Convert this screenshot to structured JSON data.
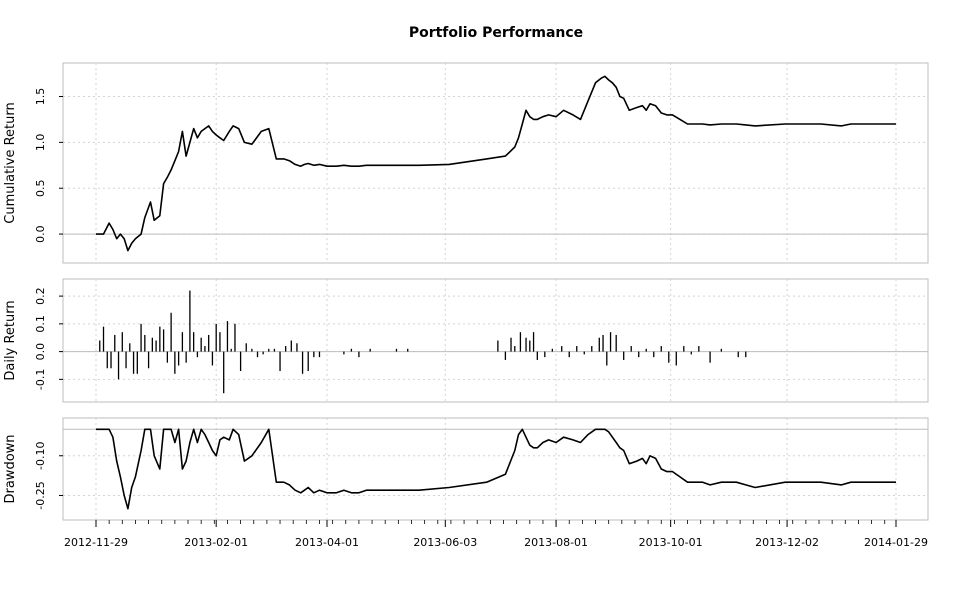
{
  "chart_data": {
    "type": "line",
    "title": "Portfolio Performance",
    "x_tick_labels": [
      "2012-11-29",
      "2013-02-01",
      "2013-04-01",
      "2013-06-03",
      "2013-08-01",
      "2013-10-01",
      "2013-12-02",
      "2014-01-29"
    ],
    "x_range": [
      "2012-11-29",
      "2014-01-29"
    ],
    "grid": true,
    "colors": {
      "line": "#000000",
      "grid": "#d3d3d3",
      "frame": "#bebebe",
      "zero": "#bebebe"
    },
    "panels": [
      {
        "name": "cumulative",
        "type": "line",
        "ylabel": "Cumulative Return",
        "ylim": [
          -0.25,
          1.8
        ],
        "yticks": [
          0.0,
          0.5,
          1.0,
          1.5
        ],
        "ytick_labels": [
          "0.0",
          "0.5",
          "1.0",
          "1.5"
        ],
        "x": [
          "2012-11-29",
          "2012-12-03",
          "2012-12-06",
          "2012-12-08",
          "2012-12-10",
          "2012-12-12",
          "2012-12-14",
          "2012-12-16",
          "2012-12-18",
          "2012-12-20",
          "2012-12-23",
          "2012-12-25",
          "2012-12-28",
          "2012-12-30",
          "2013-01-02",
          "2013-01-04",
          "2013-01-06",
          "2013-01-08",
          "2013-01-10",
          "2013-01-12",
          "2013-01-14",
          "2013-01-16",
          "2013-01-18",
          "2013-01-20",
          "2013-01-22",
          "2013-01-24",
          "2013-01-26",
          "2013-01-28",
          "2013-01-30",
          "2013-02-01",
          "2013-02-03",
          "2013-02-05",
          "2013-02-08",
          "2013-02-10",
          "2013-02-13",
          "2013-02-16",
          "2013-02-20",
          "2013-02-25",
          "2013-03-01",
          "2013-03-05",
          "2013-03-09",
          "2013-03-12",
          "2013-03-15",
          "2013-03-18",
          "2013-03-20",
          "2013-03-22",
          "2013-03-25",
          "2013-03-28",
          "2013-04-01",
          "2013-04-06",
          "2013-04-10",
          "2013-04-14",
          "2013-04-18",
          "2013-04-22",
          "2013-04-26",
          "2013-05-01",
          "2013-05-05",
          "2013-05-10",
          "2013-05-20",
          "2013-06-05",
          "2013-06-25",
          "2013-07-05",
          "2013-07-10",
          "2013-07-12",
          "2013-07-14",
          "2013-07-16",
          "2013-07-18",
          "2013-07-20",
          "2013-07-22",
          "2013-07-25",
          "2013-07-28",
          "2013-08-01",
          "2013-08-05",
          "2013-08-10",
          "2013-08-14",
          "2013-08-18",
          "2013-08-22",
          "2013-08-25",
          "2013-08-27",
          "2013-08-29",
          "2013-08-31",
          "2013-09-02",
          "2013-09-04",
          "2013-09-06",
          "2013-09-09",
          "2013-09-13",
          "2013-09-16",
          "2013-09-18",
          "2013-09-20",
          "2013-09-23",
          "2013-09-26",
          "2013-09-29",
          "2013-10-02",
          "2013-10-06",
          "2013-10-10",
          "2013-10-14",
          "2013-10-18",
          "2013-10-22",
          "2013-10-28",
          "2013-11-05",
          "2013-11-10",
          "2013-11-15",
          "2013-12-01",
          "2013-12-20",
          "2013-12-31",
          "2014-01-05",
          "2014-01-29"
        ],
        "values": [
          0.0,
          0.0,
          0.12,
          0.05,
          -0.05,
          0.0,
          -0.05,
          -0.18,
          -0.1,
          -0.05,
          0.0,
          0.18,
          0.35,
          0.15,
          0.2,
          0.55,
          0.62,
          0.7,
          0.8,
          0.9,
          1.12,
          0.85,
          1.0,
          1.15,
          1.05,
          1.12,
          1.15,
          1.18,
          1.12,
          1.08,
          1.05,
          1.02,
          1.12,
          1.18,
          1.15,
          1.0,
          0.98,
          1.12,
          1.15,
          0.82,
          0.82,
          0.8,
          0.76,
          0.74,
          0.76,
          0.77,
          0.75,
          0.76,
          0.74,
          0.74,
          0.75,
          0.74,
          0.74,
          0.75,
          0.75,
          0.75,
          0.75,
          0.75,
          0.75,
          0.76,
          0.82,
          0.85,
          0.95,
          1.05,
          1.2,
          1.35,
          1.28,
          1.25,
          1.25,
          1.28,
          1.3,
          1.28,
          1.35,
          1.3,
          1.25,
          1.45,
          1.65,
          1.7,
          1.72,
          1.68,
          1.65,
          1.6,
          1.5,
          1.48,
          1.35,
          1.38,
          1.4,
          1.35,
          1.42,
          1.4,
          1.32,
          1.3,
          1.3,
          1.25,
          1.2,
          1.2,
          1.2,
          1.19,
          1.2,
          1.2,
          1.19,
          1.18,
          1.2,
          1.2,
          1.18,
          1.2,
          1.2
        ]
      },
      {
        "name": "daily",
        "type": "bar",
        "ylabel": "Daily Return",
        "ylim": [
          -0.16,
          0.24
        ],
        "yticks": [
          -0.1,
          0.0,
          0.1,
          0.2
        ],
        "ytick_labels": [
          "-0.1",
          "0.0",
          "0.1",
          "0.2"
        ],
        "x": [
          "2012-12-01",
          "2012-12-03",
          "2012-12-05",
          "2012-12-07",
          "2012-12-09",
          "2012-12-11",
          "2012-12-13",
          "2012-12-15",
          "2012-12-17",
          "2012-12-19",
          "2012-12-21",
          "2012-12-23",
          "2012-12-25",
          "2012-12-27",
          "2012-12-29",
          "2012-12-31",
          "2013-01-02",
          "2013-01-04",
          "2013-01-06",
          "2013-01-08",
          "2013-01-10",
          "2013-01-12",
          "2013-01-14",
          "2013-01-16",
          "2013-01-18",
          "2013-01-20",
          "2013-01-22",
          "2013-01-24",
          "2013-01-26",
          "2013-01-28",
          "2013-01-30",
          "2013-02-01",
          "2013-02-03",
          "2013-02-05",
          "2013-02-07",
          "2013-02-09",
          "2013-02-11",
          "2013-02-14",
          "2013-02-17",
          "2013-02-20",
          "2013-02-23",
          "2013-02-26",
          "2013-03-01",
          "2013-03-04",
          "2013-03-07",
          "2013-03-10",
          "2013-03-13",
          "2013-03-16",
          "2013-03-19",
          "2013-03-22",
          "2013-03-25",
          "2013-03-28",
          "2013-04-10",
          "2013-04-14",
          "2013-04-18",
          "2013-04-24",
          "2013-05-04",
          "2013-05-08",
          "2013-05-14",
          "2013-05-25",
          "2013-07-01",
          "2013-07-05",
          "2013-07-08",
          "2013-07-10",
          "2013-07-13",
          "2013-07-16",
          "2013-07-18",
          "2013-07-20",
          "2013-07-22",
          "2013-07-26",
          "2013-07-30",
          "2013-08-04",
          "2013-08-08",
          "2013-08-12",
          "2013-08-16",
          "2013-08-20",
          "2013-08-24",
          "2013-08-26",
          "2013-08-28",
          "2013-08-30",
          "2013-09-02",
          "2013-09-06",
          "2013-09-10",
          "2013-09-14",
          "2013-09-18",
          "2013-09-22",
          "2013-09-26",
          "2013-09-30",
          "2013-10-04",
          "2013-10-08",
          "2013-10-12",
          "2013-10-16",
          "2013-10-22",
          "2013-10-28",
          "2013-11-02",
          "2013-11-06",
          "2013-11-10",
          "2013-12-10",
          "2013-12-20",
          "2013-12-30"
        ],
        "values": [
          0.04,
          0.09,
          -0.06,
          -0.06,
          0.06,
          -0.1,
          0.07,
          -0.06,
          0.03,
          -0.08,
          -0.08,
          0.1,
          0.06,
          -0.06,
          0.05,
          0.04,
          0.09,
          0.08,
          -0.04,
          0.14,
          -0.08,
          -0.05,
          0.07,
          -0.04,
          0.22,
          0.07,
          -0.02,
          0.05,
          0.02,
          0.06,
          -0.05,
          0.1,
          0.07,
          -0.15,
          0.11,
          0.01,
          0.1,
          -0.07,
          0.03,
          0.01,
          -0.02,
          -0.01,
          0.01,
          0.01,
          -0.07,
          0.02,
          0.04,
          0.03,
          -0.08,
          -0.07,
          -0.02,
          -0.02,
          -0.01,
          0.01,
          -0.02,
          0.01,
          0.0,
          0.01,
          0.01,
          0.0,
          0.04,
          -0.03,
          0.05,
          0.02,
          0.07,
          0.05,
          0.04,
          0.07,
          -0.03,
          -0.02,
          0.01,
          0.02,
          -0.02,
          0.02,
          -0.01,
          0.02,
          0.05,
          0.06,
          -0.05,
          0.07,
          0.06,
          -0.03,
          0.02,
          -0.02,
          0.01,
          -0.02,
          0.02,
          -0.04,
          -0.05,
          0.02,
          -0.01,
          0.02,
          -0.04,
          0.01,
          0.0,
          -0.02,
          -0.02,
          0.0,
          0.0,
          0.0
        ]
      },
      {
        "name": "drawdown",
        "type": "line",
        "ylabel": "Drawdown",
        "ylim": [
          -0.32,
          0.02
        ],
        "yticks": [
          -0.25,
          -0.1
        ],
        "ytick_labels": [
          "-0.25",
          "-0.10"
        ],
        "x": [
          "2012-11-29",
          "2012-12-03",
          "2012-12-06",
          "2012-12-08",
          "2012-12-10",
          "2012-12-12",
          "2012-12-14",
          "2012-12-16",
          "2012-12-18",
          "2012-12-20",
          "2012-12-23",
          "2012-12-25",
          "2012-12-28",
          "2012-12-30",
          "2013-01-02",
          "2013-01-04",
          "2013-01-06",
          "2013-01-08",
          "2013-01-10",
          "2013-01-12",
          "2013-01-14",
          "2013-01-16",
          "2013-01-18",
          "2013-01-20",
          "2013-01-22",
          "2013-01-24",
          "2013-01-26",
          "2013-01-28",
          "2013-01-30",
          "2013-02-01",
          "2013-02-03",
          "2013-02-05",
          "2013-02-08",
          "2013-02-10",
          "2013-02-13",
          "2013-02-16",
          "2013-02-20",
          "2013-02-25",
          "2013-03-01",
          "2013-03-05",
          "2013-03-09",
          "2013-03-12",
          "2013-03-15",
          "2013-03-18",
          "2013-03-20",
          "2013-03-22",
          "2013-03-25",
          "2013-03-28",
          "2013-04-01",
          "2013-04-06",
          "2013-04-10",
          "2013-04-14",
          "2013-04-18",
          "2013-04-22",
          "2013-04-26",
          "2013-05-01",
          "2013-05-05",
          "2013-05-10",
          "2013-05-20",
          "2013-06-05",
          "2013-06-25",
          "2013-07-05",
          "2013-07-10",
          "2013-07-12",
          "2013-07-14",
          "2013-07-16",
          "2013-07-18",
          "2013-07-20",
          "2013-07-22",
          "2013-07-25",
          "2013-07-28",
          "2013-08-01",
          "2013-08-05",
          "2013-08-10",
          "2013-08-14",
          "2013-08-18",
          "2013-08-22",
          "2013-08-25",
          "2013-08-27",
          "2013-08-29",
          "2013-08-31",
          "2013-09-02",
          "2013-09-04",
          "2013-09-06",
          "2013-09-09",
          "2013-09-13",
          "2013-09-16",
          "2013-09-18",
          "2013-09-20",
          "2013-09-23",
          "2013-09-26",
          "2013-09-29",
          "2013-10-02",
          "2013-10-06",
          "2013-10-10",
          "2013-10-14",
          "2013-10-18",
          "2013-10-22",
          "2013-10-28",
          "2013-11-05",
          "2013-11-10",
          "2013-11-15",
          "2013-12-01",
          "2013-12-20",
          "2013-12-31",
          "2014-01-05",
          "2014-01-29"
        ],
        "values": [
          0.0,
          0.0,
          0.0,
          -0.03,
          -0.12,
          -0.18,
          -0.25,
          -0.3,
          -0.22,
          -0.18,
          -0.08,
          0.0,
          0.0,
          -0.1,
          -0.15,
          0.0,
          0.0,
          0.0,
          -0.05,
          0.0,
          -0.15,
          -0.12,
          -0.05,
          0.0,
          -0.05,
          0.0,
          -0.02,
          -0.05,
          -0.08,
          -0.1,
          -0.04,
          -0.03,
          -0.04,
          0.0,
          -0.02,
          -0.12,
          -0.1,
          -0.05,
          0.0,
          -0.2,
          -0.2,
          -0.21,
          -0.23,
          -0.24,
          -0.23,
          -0.22,
          -0.24,
          -0.23,
          -0.24,
          -0.24,
          -0.23,
          -0.24,
          -0.24,
          -0.23,
          -0.23,
          -0.23,
          -0.23,
          -0.23,
          -0.23,
          -0.22,
          -0.2,
          -0.17,
          -0.08,
          -0.02,
          0.0,
          -0.03,
          -0.06,
          -0.07,
          -0.07,
          -0.05,
          -0.04,
          -0.05,
          -0.03,
          -0.04,
          -0.05,
          -0.02,
          0.0,
          0.0,
          0.0,
          -0.01,
          -0.03,
          -0.05,
          -0.07,
          -0.08,
          -0.13,
          -0.12,
          -0.11,
          -0.13,
          -0.1,
          -0.11,
          -0.15,
          -0.16,
          -0.16,
          -0.18,
          -0.2,
          -0.2,
          -0.2,
          -0.21,
          -0.2,
          -0.2,
          -0.21,
          -0.22,
          -0.2,
          -0.2,
          -0.21,
          -0.2,
          -0.2
        ]
      }
    ]
  }
}
